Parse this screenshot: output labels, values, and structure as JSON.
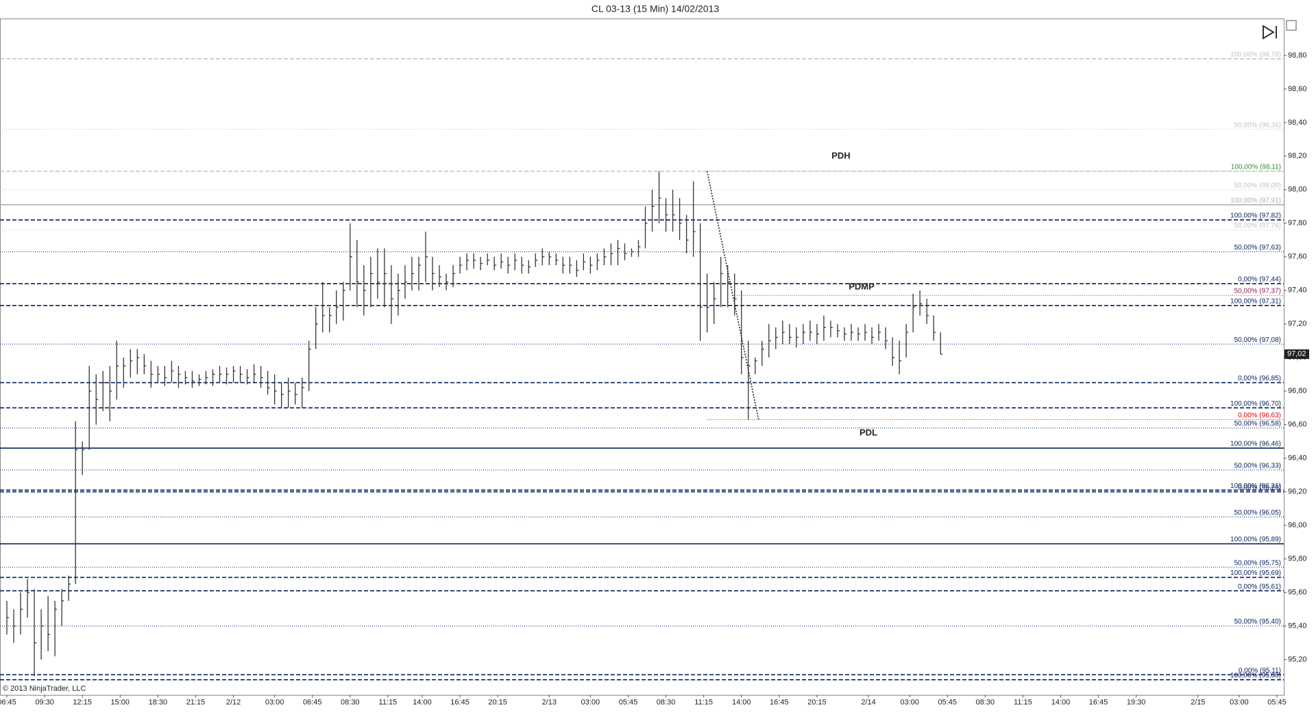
{
  "chart_data": {
    "type": "ohlc",
    "title": "CL 03-13 (15 Min)  14/02/2013",
    "copyright": "© 2013 NinjaTrader, LLC",
    "color": "#333333",
    "xlim": [
      -2,
      372
    ],
    "ylim": [
      94.99,
      99.02
    ],
    "xticks": [
      {
        "value": 0,
        "label": "06:45"
      },
      {
        "value": 11,
        "label": "09:30"
      },
      {
        "value": 22,
        "label": "12:15"
      },
      {
        "value": 33,
        "label": "15:00"
      },
      {
        "value": 44,
        "label": "18:30"
      },
      {
        "value": 55,
        "label": "21:15"
      },
      {
        "value": 66,
        "label": "2/12"
      },
      {
        "value": 78,
        "label": "03:00"
      },
      {
        "value": 89,
        "label": "06:45"
      },
      {
        "value": 100,
        "label": "08:30"
      },
      {
        "value": 111,
        "label": "11:15"
      },
      {
        "value": 121,
        "label": "14:00"
      },
      {
        "value": 132,
        "label": "16:45"
      },
      {
        "value": 143,
        "label": "20:15"
      },
      {
        "value": 158,
        "label": "2/13"
      },
      {
        "value": 170,
        "label": "03:00"
      },
      {
        "value": 181,
        "label": "05:45"
      },
      {
        "value": 192,
        "label": "08:30"
      },
      {
        "value": 203,
        "label": "11:15"
      },
      {
        "value": 214,
        "label": "14:00"
      },
      {
        "value": 225,
        "label": "16:45"
      },
      {
        "value": 236,
        "label": "20:15"
      },
      {
        "value": 251,
        "label": "2/14"
      },
      {
        "value": 263,
        "label": "03:00"
      },
      {
        "value": 274,
        "label": "05:45"
      },
      {
        "value": 285,
        "label": "08:30"
      },
      {
        "value": 296,
        "label": "11:15"
      },
      {
        "value": 307,
        "label": "14:00"
      },
      {
        "value": 318,
        "label": "16:45"
      },
      {
        "value": 329,
        "label": "19:30"
      },
      {
        "value": 347,
        "label": "2/15"
      },
      {
        "value": 359,
        "label": "03:00"
      },
      {
        "value": 370,
        "label": "05:45"
      }
    ],
    "yticks": [
      {
        "value": 95.2,
        "label": "95,20"
      },
      {
        "value": 95.4,
        "label": "95,40"
      },
      {
        "value": 95.6,
        "label": "95,60"
      },
      {
        "value": 95.8,
        "label": "95,80"
      },
      {
        "value": 96,
        "label": "96,00"
      },
      {
        "value": 96.2,
        "label": "96,20"
      },
      {
        "value": 96.4,
        "label": "96,40"
      },
      {
        "value": 96.6,
        "label": "96,60"
      },
      {
        "value": 96.8,
        "label": "96,80"
      },
      {
        "value": 97,
        "label": "97,00"
      },
      {
        "value": 97.2,
        "label": "97,20"
      },
      {
        "value": 97.4,
        "label": "97,40"
      },
      {
        "value": 97.6,
        "label": "97,60"
      },
      {
        "value": 97.8,
        "label": "97,80"
      },
      {
        "value": 98,
        "label": "98,00"
      },
      {
        "value": 98.2,
        "label": "98,20"
      },
      {
        "value": 98.4,
        "label": "98,40"
      },
      {
        "value": 98.6,
        "label": "98,60"
      },
      {
        "value": 98.8,
        "label": "98,80"
      }
    ],
    "last_price": {
      "value": 97.02,
      "label": "97,02"
    },
    "x": [
      0,
      2,
      4,
      6,
      8,
      10,
      12,
      14,
      16,
      18,
      20,
      22,
      24,
      26,
      28,
      30,
      32,
      34,
      36,
      38,
      40,
      42,
      44,
      46,
      48,
      50,
      52,
      54,
      56,
      58,
      60,
      62,
      64,
      66,
      68,
      70,
      72,
      74,
      76,
      78,
      80,
      82,
      84,
      86,
      88,
      90,
      92,
      94,
      96,
      98,
      100,
      102,
      104,
      106,
      108,
      110,
      112,
      114,
      116,
      118,
      120,
      122,
      124,
      126,
      128,
      130,
      132,
      134,
      136,
      138,
      140,
      142,
      144,
      146,
      148,
      150,
      152,
      154,
      156,
      158,
      160,
      162,
      164,
      166,
      168,
      170,
      172,
      174,
      176,
      178,
      180,
      182,
      184,
      186,
      188,
      190,
      192,
      194,
      196,
      198,
      200,
      202,
      204,
      206,
      208,
      210,
      212,
      214,
      216,
      218,
      220,
      222,
      224,
      226,
      228,
      230,
      232,
      234,
      236,
      238,
      240,
      242,
      244,
      246,
      248,
      250,
      252,
      254,
      256,
      258,
      260,
      262,
      264,
      266,
      268,
      270,
      272
    ],
    "high": [
      95.55,
      95.5,
      95.6,
      95.68,
      95.62,
      95.5,
      95.58,
      95.55,
      95.62,
      95.7,
      96.62,
      96.5,
      96.95,
      96.9,
      96.92,
      96.95,
      97.1,
      97.0,
      97.05,
      97.05,
      97.02,
      96.98,
      96.95,
      96.95,
      96.98,
      96.95,
      96.92,
      96.92,
      96.9,
      96.92,
      96.93,
      96.95,
      96.94,
      96.95,
      96.95,
      96.93,
      96.96,
      96.95,
      96.92,
      96.9,
      96.85,
      96.88,
      96.85,
      96.88,
      97.1,
      97.3,
      97.45,
      97.3,
      97.4,
      97.45,
      97.8,
      97.7,
      97.55,
      97.6,
      97.65,
      97.65,
      97.55,
      97.5,
      97.55,
      97.6,
      97.6,
      97.75,
      97.6,
      97.55,
      97.5,
      97.55,
      97.6,
      97.62,
      97.62,
      97.6,
      97.62,
      97.6,
      97.62,
      97.6,
      97.62,
      97.6,
      97.58,
      97.62,
      97.65,
      97.63,
      97.62,
      97.6,
      97.6,
      97.58,
      97.62,
      97.6,
      97.62,
      97.65,
      97.68,
      97.7,
      97.68,
      97.65,
      97.7,
      97.9,
      98.0,
      98.11,
      97.95,
      98.0,
      97.95,
      97.85,
      98.05,
      97.8,
      97.5,
      97.45,
      97.6,
      97.55,
      97.5,
      97.4,
      97.1,
      97.0,
      97.1,
      97.2,
      97.18,
      97.22,
      97.2,
      97.18,
      97.2,
      97.22,
      97.2,
      97.25,
      97.22,
      97.2,
      97.18,
      97.2,
      97.18,
      97.2,
      97.18,
      97.2,
      97.18,
      97.12,
      97.1,
      97.2,
      97.38,
      97.4,
      97.35,
      97.25,
      97.15
    ],
    "low": [
      95.35,
      95.3,
      95.35,
      95.45,
      95.1,
      95.2,
      95.25,
      95.22,
      95.4,
      95.55,
      95.65,
      96.3,
      96.45,
      96.6,
      96.68,
      96.62,
      96.75,
      96.82,
      96.88,
      96.9,
      96.9,
      96.82,
      96.85,
      96.83,
      96.85,
      96.82,
      96.84,
      96.82,
      96.83,
      96.84,
      96.83,
      96.85,
      96.84,
      96.85,
      96.85,
      96.84,
      96.85,
      96.82,
      96.78,
      96.72,
      96.7,
      96.7,
      96.72,
      96.7,
      96.8,
      97.05,
      97.15,
      97.15,
      97.2,
      97.22,
      97.4,
      97.3,
      97.25,
      97.3,
      97.35,
      97.3,
      97.2,
      97.25,
      97.35,
      97.4,
      97.4,
      97.45,
      97.4,
      97.42,
      97.4,
      97.42,
      97.5,
      97.52,
      97.53,
      97.52,
      97.55,
      97.52,
      97.53,
      97.5,
      97.52,
      97.5,
      97.5,
      97.54,
      97.55,
      97.55,
      97.55,
      97.5,
      97.5,
      97.48,
      97.52,
      97.5,
      97.52,
      97.55,
      97.55,
      97.55,
      97.58,
      97.6,
      97.6,
      97.65,
      97.75,
      97.8,
      97.75,
      97.75,
      97.7,
      97.62,
      97.6,
      97.1,
      97.15,
      97.2,
      97.3,
      97.3,
      97.25,
      96.9,
      96.63,
      96.9,
      96.95,
      97.0,
      97.05,
      97.08,
      97.08,
      97.06,
      97.08,
      97.1,
      97.08,
      97.1,
      97.12,
      97.12,
      97.1,
      97.1,
      97.1,
      97.1,
      97.08,
      97.1,
      97.05,
      96.95,
      96.9,
      97.0,
      97.15,
      97.25,
      97.2,
      97.1,
      97.02
    ],
    "close": [
      95.45,
      95.4,
      95.5,
      95.6,
      95.3,
      95.4,
      95.35,
      95.5,
      95.55,
      95.65,
      96.45,
      96.45,
      96.8,
      96.75,
      96.85,
      96.8,
      96.95,
      96.95,
      96.98,
      97.0,
      96.95,
      96.9,
      96.9,
      96.88,
      96.92,
      96.9,
      96.88,
      96.86,
      96.87,
      96.88,
      96.9,
      96.9,
      96.9,
      96.92,
      96.9,
      96.88,
      96.9,
      96.88,
      96.82,
      96.8,
      96.78,
      96.8,
      96.78,
      96.82,
      97.05,
      97.2,
      97.25,
      97.25,
      97.3,
      97.4,
      97.6,
      97.45,
      97.4,
      97.5,
      97.45,
      97.5,
      97.35,
      97.4,
      97.45,
      97.5,
      97.55,
      97.6,
      97.5,
      97.48,
      97.45,
      97.5,
      97.55,
      97.58,
      97.58,
      97.56,
      97.58,
      97.55,
      97.57,
      97.55,
      97.58,
      97.55,
      97.54,
      97.58,
      97.6,
      97.6,
      97.58,
      97.55,
      97.55,
      97.52,
      97.57,
      97.55,
      97.58,
      97.6,
      97.62,
      97.65,
      97.62,
      97.63,
      97.66,
      97.8,
      97.9,
      97.95,
      97.85,
      97.85,
      97.8,
      97.7,
      97.75,
      97.3,
      97.3,
      97.35,
      97.5,
      97.45,
      97.35,
      97.0,
      96.95,
      96.98,
      97.05,
      97.1,
      97.12,
      97.15,
      97.12,
      97.12,
      97.15,
      97.15,
      97.14,
      97.18,
      97.18,
      97.16,
      97.14,
      97.15,
      97.14,
      97.15,
      97.12,
      97.15,
      97.1,
      97.0,
      96.98,
      97.15,
      97.3,
      97.32,
      97.25,
      97.15,
      97.02
    ],
    "levels": [
      {
        "value": 98.78,
        "label": "100,00% (98,78)",
        "color": "#c4c4c4",
        "style": "dashed"
      },
      {
        "value": 98.36,
        "label": "50,00% (98,36)",
        "color": "#c4c4c4",
        "style": "dotted"
      },
      {
        "value": 98.11,
        "label": "100,00% (98,11)",
        "color": "#2e8b2e",
        "style": "dotted",
        "start": 204
      },
      {
        "value": 98.11,
        "label": "",
        "color": "#c4c4c4",
        "style": "dashed"
      },
      {
        "value": 98.0,
        "label": "50,00% (98,00)",
        "color": "#c4c4c4",
        "style": "dotted"
      },
      {
        "value": 97.91,
        "label": "100,00% (97,91)",
        "color": "#b0b0b0",
        "style": "solid"
      },
      {
        "value": 97.82,
        "label": "100,00% (97,82)",
        "color": "#0a1f5c",
        "style": "dashed"
      },
      {
        "value": 97.76,
        "label": "50,00% (97,76)",
        "color": "#c4c4c4",
        "style": "dotted"
      },
      {
        "value": 97.63,
        "label": "50,00% (97,63)",
        "color": "#0a1f5c",
        "style": "dotted"
      },
      {
        "value": 97.44,
        "label": "0,00% (97,44)",
        "color": "#0a1f5c",
        "style": "dashed"
      },
      {
        "value": 97.37,
        "label": "50,00% (97,37)",
        "color": "#8b2252",
        "style": "dotted",
        "start": 212
      },
      {
        "value": 97.31,
        "label": "100,00% (97,31)",
        "color": "#0a1f5c",
        "style": "dashed"
      },
      {
        "value": 97.08,
        "label": "50,00% (97,08)",
        "color": "#0a1f5c",
        "style": "dotted"
      },
      {
        "value": 96.85,
        "label": "0,00% (96,85)",
        "color": "#0a1f5c",
        "style": "dashed"
      },
      {
        "value": 96.7,
        "label": "100,00% (96,70)",
        "color": "#0a1f5c",
        "style": "dashed"
      },
      {
        "value": 96.63,
        "label": "0,00% (96,63)",
        "color": "#dd0000",
        "style": "dotted",
        "start": 204
      },
      {
        "value": 96.58,
        "label": "50,00% (96,58)",
        "color": "#0a1f5c",
        "style": "dotted"
      },
      {
        "value": 96.46,
        "label": "100,00% (96,46)",
        "color": "#0a1f5c",
        "style": "solid"
      },
      {
        "value": 96.33,
        "label": "50,00% (96,33)",
        "color": "#0a1f5c",
        "style": "dotted"
      },
      {
        "value": 96.21,
        "label": "100,00% (96,21)",
        "color": "#0a1f5c",
        "style": "dashed"
      },
      {
        "value": 96.2,
        "label": "0,00% (96,20)",
        "color": "#0a1f5c",
        "style": "dashed"
      },
      {
        "value": 96.05,
        "label": "50,00% (96,05)",
        "color": "#0a1f5c",
        "style": "dotted"
      },
      {
        "value": 95.89,
        "label": "100,00% (95,89)",
        "color": "#0a1f5c",
        "style": "solid"
      },
      {
        "value": 95.75,
        "label": "50,00% (95,75)",
        "color": "#0a1f5c",
        "style": "dotted"
      },
      {
        "value": 95.69,
        "label": "100,00% (95,69)",
        "color": "#0a1f5c",
        "style": "dashed"
      },
      {
        "value": 95.61,
        "label": "0,00% (95,61)",
        "color": "#0a1f5c",
        "style": "dashed"
      },
      {
        "value": 95.4,
        "label": "50,00% (95,40)",
        "color": "#0a1f5c",
        "style": "dotted"
      },
      {
        "value": 95.11,
        "label": "0,00% (95,11)",
        "color": "#0a1f5c",
        "style": "dashed"
      },
      {
        "value": 95.08,
        "label": "100,00% (95,08)",
        "color": "#0a1f5c",
        "style": "dashed"
      }
    ],
    "annotations": [
      {
        "text": "PDH",
        "x": 243,
        "y": 98.2
      },
      {
        "text": "PDMP",
        "x": 249,
        "y": 97.42
      },
      {
        "text": "PDL",
        "x": 251,
        "y": 96.55
      }
    ],
    "trendline": {
      "x": [
        204,
        219
      ],
      "y": [
        98.11,
        96.63
      ]
    }
  }
}
